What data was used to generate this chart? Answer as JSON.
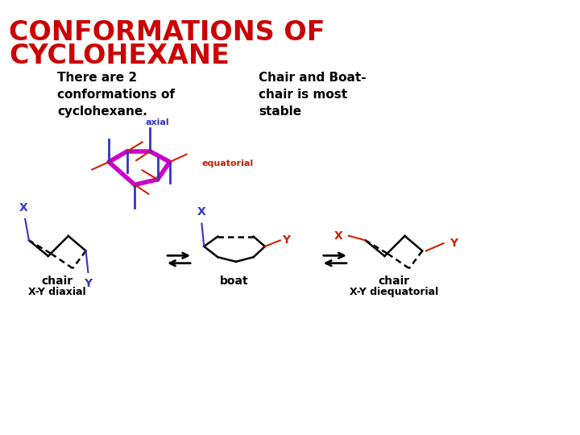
{
  "title_line1": "CONFORMATIONS OF",
  "title_line2": "CYCLOHEXANE",
  "title_color": "#CC0000",
  "title_fontsize": 24,
  "bg_color": "#FFFFFF",
  "text1": "There are 2\nconformations of\ncyclohexane.",
  "text2": "Chair and Boat-\nchair is most\nstable",
  "text_fontsize": 11,
  "label_chair1": "chair",
  "label_boat": "boat",
  "label_chair2": "chair",
  "label_diaxial": "X-Y diaxial",
  "label_diequatorial": "X-Y diequatorial",
  "label_axial": "axial",
  "label_equatorial": "equatorial",
  "blue_color": "#3333CC",
  "red_color": "#CC2200",
  "magenta_color": "#CC00CC",
  "black_color": "#000000",
  "right_bar_color": "#AA0000"
}
